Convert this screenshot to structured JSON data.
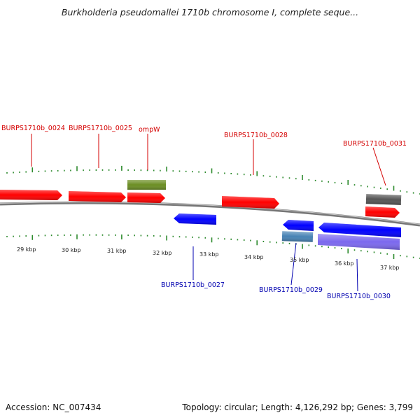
{
  "title": "Burkholderia pseudomallei 1710b chromosome I, complete seque...",
  "footer": {
    "accession": "Accession: NC_007434",
    "summary": "Topology: circular; Length: 4,126,292 bp; Genes: 3,799"
  },
  "colors": {
    "forward_label": "#d40000",
    "reverse_label": "#0000b0",
    "backbone": "#888888",
    "tick": "#2e8b2e",
    "red_gene": "#ff0000",
    "blue_gene": "#0000ff",
    "olive_gene": "#6b8e23",
    "steelblue_gene": "#4682b4",
    "purple_gene": "#7b68ee",
    "grey_gene": "#555555"
  },
  "scale": {
    "unit": "kbp",
    "labels": [
      "29 kbp",
      "30 kbp",
      "31 kbp",
      "32 kbp",
      "33 kbp",
      "34 kbp",
      "35 kbp",
      "36 kbp",
      "37 kbp"
    ]
  },
  "forward_labels": [
    "BURPS1710b_0024",
    "BURPS1710b_0025",
    "ompW",
    "BURPS1710b_0028",
    "BURPS1710b_0031"
  ],
  "reverse_labels": [
    "BURPS1710b_0027",
    "BURPS1710b_0029",
    "BURPS1710b_0030"
  ]
}
